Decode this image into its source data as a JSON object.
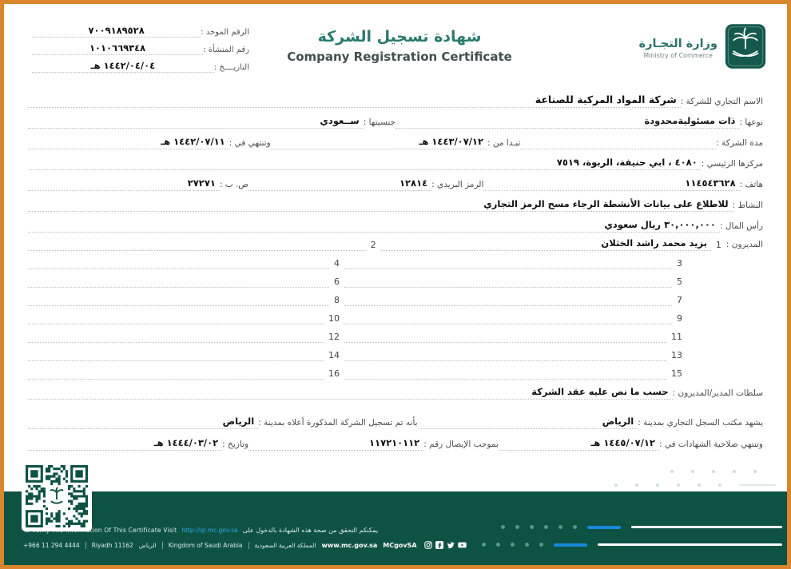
{
  "page": {
    "border_color": "#d9862e",
    "accent_teal": "#2b7a6e",
    "band_green": "#0e5244",
    "link_blue": "#2da9e1"
  },
  "header": {
    "unified_number_label": "الرقم الموحد :",
    "unified_number": "٧٠٠٩١٨٩٥٢٨",
    "establishment_number_label": "رقم المنشأة :",
    "establishment_number": "١٠١٠٦٦٩٣٤٨",
    "date_label": "التاريــــخ :",
    "date": "١٤٤٢/٠٤/٠٤ هـ",
    "title_ar": "شهادة تسجيل الشركة",
    "title_en": "Company Registration Certificate",
    "ministry_ar": "وزارة التجـارة",
    "ministry_en": "Ministry of Commerce"
  },
  "fields": {
    "trade_name_label": "الاسم التجاري للشركة :",
    "trade_name": "شركة المواد المركبة للصناعة",
    "type_label": "نوعها :",
    "type": "ذات مسئوليةمحدودة",
    "nationality_label": "جنسيتها :",
    "nationality": "ســعودي",
    "duration_label": "مدة الشركة :",
    "start_label": "تبـدا من :",
    "start_date": "١٤٤٣/٠٧/١٢ هـ",
    "end_label": "وتنتهي في :",
    "end_date": "١٤٤٢/٠٧/١١ هـ",
    "hq_label": "مركزها الرئيسي :",
    "hq": "٤٠٨٠ ، ابي حنيفة، الربوة، ٧٥١٩",
    "phone_label": "هاتف :",
    "phone": "١١٤٥٤٣٦٢٨",
    "postal_label": "الرمز البريدي :",
    "postal": "١٢٨١٤",
    "pobox_label": "ص. ب :",
    "pobox": "٢٧٢٧١",
    "activity_label": "النشاط :",
    "activity": "للاطلاع على بيانات الأنشطة الرجاء مسح الرمز التجاري",
    "capital_label": "رأس المال :",
    "capital": "٣٠,٠٠٠,٠٠٠ ريال سعودي",
    "managers_label": "المديرون :",
    "manager1": "بزيد محمد راشد الخثلان",
    "powers_label": "سلطات المدير/المديرون :",
    "powers": "حسب ما نص عليه عقد الشركة",
    "registry_office_label": "يشهد مكتب السجل التجاري بمدينة :",
    "registry_city": "الرياض",
    "registered_in_label": "بأنه تم تسجيل الشركة المذكورة أعلاه بمدينة :",
    "registered_city": "الرياض",
    "validity_label": "وتنتهي صلاحية الشهادات في :",
    "validity_date": "١٤٤٥/٠٧/١٢ هـ",
    "receipt_label": "بموجب الإيصال رقم :",
    "receipt_number": "١١٧٢١٠١١٢",
    "receipt_date_label": "وتاريخ :",
    "receipt_date": "١٤٤٤/٠٣/٠٢ هـ"
  },
  "managers": {
    "numbers": [
      "1",
      "2",
      "3",
      "4",
      "5",
      "6",
      "7",
      "8",
      "9",
      "10",
      "11",
      "12",
      "13",
      "14",
      "15",
      "16"
    ]
  },
  "footer": {
    "verify_en": "To Verify The Information Of This Certificate Visit",
    "verify_link": "http://qr.mc.gov.sa",
    "verify_ar": "يمكنكم التحقق من صحة هذه الشهادة بالدخول على",
    "phone": "+966 11 294 4444",
    "city_en": "Riyadh 11162",
    "city_ar": "الرياض",
    "country_en": "Kingdom of Saudi Arabia",
    "country_ar": "المملكة العربية السعودية",
    "website": "www.mc.gov.sa",
    "social_handle": "MCgovSA"
  }
}
